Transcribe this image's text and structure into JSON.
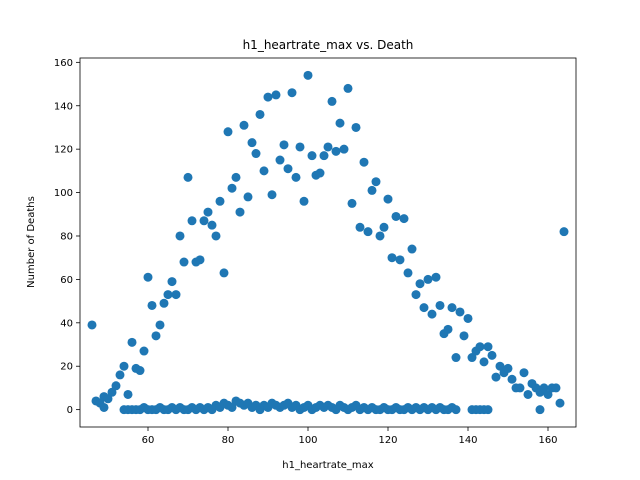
{
  "chart_data": {
    "type": "scatter",
    "title": "h1_heartrate_max vs. Death",
    "xlabel": "h1_heartrate_max",
    "ylabel": "Number of Deaths",
    "xlim": [
      43,
      167
    ],
    "ylim": [
      -8,
      162
    ],
    "xticks": [
      60,
      80,
      100,
      120,
      140,
      160
    ],
    "yticks": [
      0,
      20,
      40,
      60,
      80,
      100,
      120,
      140,
      160
    ],
    "grid": false,
    "marker_color": "#1f77b4",
    "series": [
      {
        "points": [
          [
            46,
            39
          ],
          [
            47,
            4
          ],
          [
            48,
            3
          ],
          [
            49,
            1
          ],
          [
            49,
            6
          ],
          [
            50,
            5
          ],
          [
            51,
            8
          ],
          [
            52,
            11
          ],
          [
            53,
            16
          ],
          [
            54,
            20
          ],
          [
            55,
            7
          ],
          [
            56,
            31
          ],
          [
            57,
            19
          ],
          [
            58,
            18
          ],
          [
            59,
            27
          ],
          [
            60,
            61
          ],
          [
            61,
            48
          ],
          [
            62,
            34
          ],
          [
            63,
            39
          ],
          [
            64,
            49
          ],
          [
            65,
            53
          ],
          [
            66,
            59
          ],
          [
            67,
            53
          ],
          [
            68,
            80
          ],
          [
            69,
            68
          ],
          [
            70,
            107
          ],
          [
            71,
            87
          ],
          [
            72,
            68
          ],
          [
            73,
            69
          ],
          [
            74,
            87
          ],
          [
            75,
            91
          ],
          [
            76,
            85
          ],
          [
            77,
            80
          ],
          [
            78,
            96
          ],
          [
            79,
            63
          ],
          [
            80,
            128
          ],
          [
            81,
            102
          ],
          [
            82,
            107
          ],
          [
            83,
            91
          ],
          [
            84,
            131
          ],
          [
            85,
            98
          ],
          [
            86,
            123
          ],
          [
            87,
            118
          ],
          [
            88,
            136
          ],
          [
            89,
            110
          ],
          [
            90,
            144
          ],
          [
            91,
            99
          ],
          [
            92,
            145
          ],
          [
            93,
            115
          ],
          [
            94,
            122
          ],
          [
            95,
            111
          ],
          [
            96,
            146
          ],
          [
            97,
            107
          ],
          [
            98,
            121
          ],
          [
            99,
            96
          ],
          [
            100,
            154
          ],
          [
            101,
            117
          ],
          [
            102,
            108
          ],
          [
            103,
            109
          ],
          [
            104,
            117
          ],
          [
            105,
            121
          ],
          [
            106,
            142
          ],
          [
            107,
            119
          ],
          [
            108,
            132
          ],
          [
            109,
            120
          ],
          [
            110,
            148
          ],
          [
            111,
            95
          ],
          [
            112,
            130
          ],
          [
            113,
            84
          ],
          [
            114,
            114
          ],
          [
            115,
            82
          ],
          [
            116,
            101
          ],
          [
            117,
            105
          ],
          [
            118,
            80
          ],
          [
            119,
            84
          ],
          [
            120,
            97
          ],
          [
            121,
            70
          ],
          [
            122,
            89
          ],
          [
            123,
            69
          ],
          [
            124,
            88
          ],
          [
            125,
            63
          ],
          [
            126,
            74
          ],
          [
            127,
            53
          ],
          [
            128,
            58
          ],
          [
            129,
            47
          ],
          [
            130,
            60
          ],
          [
            131,
            44
          ],
          [
            132,
            61
          ],
          [
            133,
            48
          ],
          [
            134,
            35
          ],
          [
            135,
            37
          ],
          [
            136,
            47
          ],
          [
            137,
            24
          ],
          [
            138,
            45
          ],
          [
            139,
            34
          ],
          [
            140,
            42
          ],
          [
            141,
            24
          ],
          [
            142,
            27
          ],
          [
            143,
            29
          ],
          [
            144,
            22
          ],
          [
            145,
            29
          ],
          [
            146,
            25
          ],
          [
            147,
            15
          ],
          [
            148,
            20
          ],
          [
            149,
            17
          ],
          [
            150,
            19
          ],
          [
            151,
            14
          ],
          [
            152,
            10
          ],
          [
            153,
            10
          ],
          [
            154,
            17
          ],
          [
            155,
            7
          ],
          [
            156,
            12
          ],
          [
            157,
            10
          ],
          [
            158,
            8
          ],
          [
            159,
            10
          ],
          [
            160,
            7
          ],
          [
            161,
            10
          ],
          [
            162,
            10
          ],
          [
            163,
            3
          ],
          [
            164,
            82
          ],
          [
            54,
            0
          ],
          [
            55,
            0
          ],
          [
            56,
            0
          ],
          [
            57,
            0
          ],
          [
            58,
            0
          ],
          [
            59,
            1
          ],
          [
            60,
            0
          ],
          [
            61,
            0
          ],
          [
            62,
            0
          ],
          [
            63,
            1
          ],
          [
            64,
            0
          ],
          [
            65,
            0
          ],
          [
            66,
            1
          ],
          [
            67,
            0
          ],
          [
            68,
            1
          ],
          [
            69,
            0
          ],
          [
            70,
            0
          ],
          [
            71,
            1
          ],
          [
            72,
            0
          ],
          [
            73,
            1
          ],
          [
            74,
            0
          ],
          [
            75,
            1
          ],
          [
            76,
            0
          ],
          [
            77,
            2
          ],
          [
            78,
            1
          ],
          [
            79,
            3
          ],
          [
            80,
            2
          ],
          [
            81,
            1
          ],
          [
            82,
            4
          ],
          [
            83,
            3
          ],
          [
            84,
            2
          ],
          [
            85,
            3
          ],
          [
            86,
            1
          ],
          [
            87,
            2
          ],
          [
            88,
            0
          ],
          [
            89,
            2
          ],
          [
            90,
            1
          ],
          [
            91,
            3
          ],
          [
            92,
            2
          ],
          [
            93,
            1
          ],
          [
            94,
            2
          ],
          [
            95,
            3
          ],
          [
            96,
            1
          ],
          [
            97,
            2
          ],
          [
            98,
            0
          ],
          [
            99,
            1
          ],
          [
            100,
            2
          ],
          [
            101,
            0
          ],
          [
            102,
            1
          ],
          [
            103,
            2
          ],
          [
            104,
            1
          ],
          [
            105,
            2
          ],
          [
            106,
            1
          ],
          [
            107,
            0
          ],
          [
            108,
            2
          ],
          [
            109,
            1
          ],
          [
            110,
            0
          ],
          [
            111,
            1
          ],
          [
            112,
            2
          ],
          [
            113,
            0
          ],
          [
            114,
            1
          ],
          [
            115,
            0
          ],
          [
            116,
            1
          ],
          [
            117,
            0
          ],
          [
            118,
            0
          ],
          [
            119,
            1
          ],
          [
            120,
            0
          ],
          [
            121,
            0
          ],
          [
            122,
            1
          ],
          [
            123,
            0
          ],
          [
            124,
            0
          ],
          [
            125,
            1
          ],
          [
            126,
            0
          ],
          [
            127,
            1
          ],
          [
            128,
            0
          ],
          [
            129,
            1
          ],
          [
            130,
            0
          ],
          [
            131,
            1
          ],
          [
            132,
            0
          ],
          [
            133,
            1
          ],
          [
            134,
            0
          ],
          [
            135,
            0
          ],
          [
            136,
            1
          ],
          [
            137,
            0
          ],
          [
            141,
            0
          ],
          [
            142,
            0
          ],
          [
            143,
            0
          ],
          [
            144,
            0
          ],
          [
            145,
            0
          ],
          [
            158,
            0
          ]
        ]
      }
    ]
  }
}
